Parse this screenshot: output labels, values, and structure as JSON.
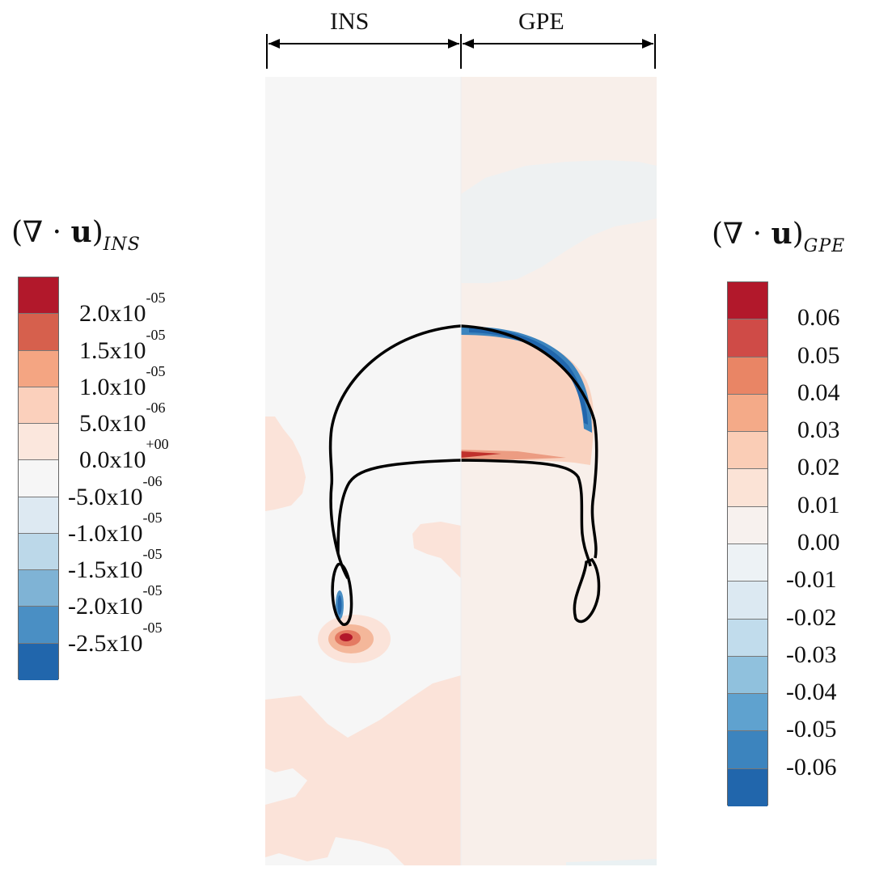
{
  "header": {
    "left_label": "INS",
    "right_label": "GPE"
  },
  "colorbar_left": {
    "title": "(∇ · u)",
    "title_subscript": "INS",
    "labels": [
      {
        "mant": "2.0x10",
        "exp": "-05"
      },
      {
        "mant": "1.5x10",
        "exp": "-05"
      },
      {
        "mant": "1.0x10",
        "exp": "-05"
      },
      {
        "mant": "5.0x10",
        "exp": "-06"
      },
      {
        "mant": "0.0x10",
        "exp": "+00"
      },
      {
        "mant": "-5.0x10",
        "exp": "-06"
      },
      {
        "mant": "-1.0x10",
        "exp": "-05"
      },
      {
        "mant": "-1.5x10",
        "exp": "-05"
      },
      {
        "mant": "-2.0x10",
        "exp": "-05"
      },
      {
        "mant": "-2.5x10",
        "exp": "-05"
      }
    ],
    "colors": [
      "#b2182b",
      "#d6604d",
      "#f4a582",
      "#fbd0bc",
      "#fbe7dd",
      "#f6f6f6",
      "#dde9f2",
      "#bcd8e9",
      "#7fb3d5",
      "#4a8fc4",
      "#2166ac"
    ]
  },
  "colorbar_right": {
    "title": "(∇ · u)",
    "title_subscript": "GPE",
    "labels": [
      "0.06",
      "0.05",
      "0.04",
      "0.03",
      "0.02",
      "0.01",
      "0.00",
      "-0.01",
      "-0.02",
      "-0.03",
      "-0.04",
      "-0.05",
      "-0.06"
    ],
    "colors": [
      "#b2182b",
      "#cf4b47",
      "#e98565",
      "#f4aa88",
      "#facdb6",
      "#fbe3d6",
      "#f7f1ee",
      "#edf2f5",
      "#dce9f2",
      "#c1dcec",
      "#90c1dd",
      "#5fa2cf",
      "#3c84be",
      "#2166ac"
    ]
  },
  "panel": {
    "ins_background": "#f6f6f6",
    "gpe_background": "#f8efea",
    "light_red": "#fbe3d9",
    "light_blue": "#eaf1f3",
    "outline_color": "#000000"
  }
}
